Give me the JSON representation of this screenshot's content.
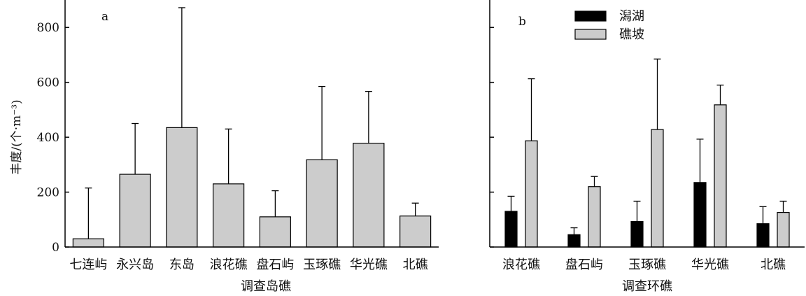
{
  "y_axis_label": "丰度/(个·m⁻³)",
  "colors": {
    "axis": "#000000",
    "bar_dark": "#000000",
    "bar_light": "#cccccc",
    "error": "#000000"
  },
  "chart_data": [
    {
      "type": "bar",
      "panel_label": "a",
      "xlabel": "调查岛礁",
      "ylabel": "丰度/(个·m⁻³)",
      "ylim": [
        0,
        900
      ],
      "yticks": [
        0,
        200,
        400,
        600,
        800
      ],
      "grid": false,
      "categories": [
        "七连屿",
        "永兴岛",
        "东岛",
        "浪花礁",
        "盘石屿",
        "玉琢礁",
        "华光礁",
        "北礁"
      ],
      "series": [
        {
          "values": [
            30,
            265,
            435,
            230,
            110,
            318,
            378,
            113
          ],
          "error_upper": [
            215,
            450,
            872,
            430,
            205,
            585,
            567,
            160
          ],
          "color": "#cccccc"
        }
      ]
    },
    {
      "type": "bar",
      "panel_label": "b",
      "xlabel": "调查环礁",
      "ylim": [
        0,
        900
      ],
      "yticks": [
        0,
        200,
        400,
        600,
        800
      ],
      "grid": false,
      "legend": "top-center",
      "categories": [
        "浪花礁",
        "盘石屿",
        "玉琢礁",
        "华光礁",
        "北礁"
      ],
      "series": [
        {
          "name": "潟湖",
          "values": [
            130,
            45,
            93,
            235,
            85
          ],
          "error_upper": [
            185,
            70,
            167,
            393,
            147
          ],
          "color": "#000000"
        },
        {
          "name": "礁坡",
          "values": [
            387,
            220,
            428,
            518,
            126
          ],
          "error_upper": [
            613,
            257,
            685,
            590,
            167
          ],
          "color": "#cccccc"
        }
      ]
    }
  ]
}
